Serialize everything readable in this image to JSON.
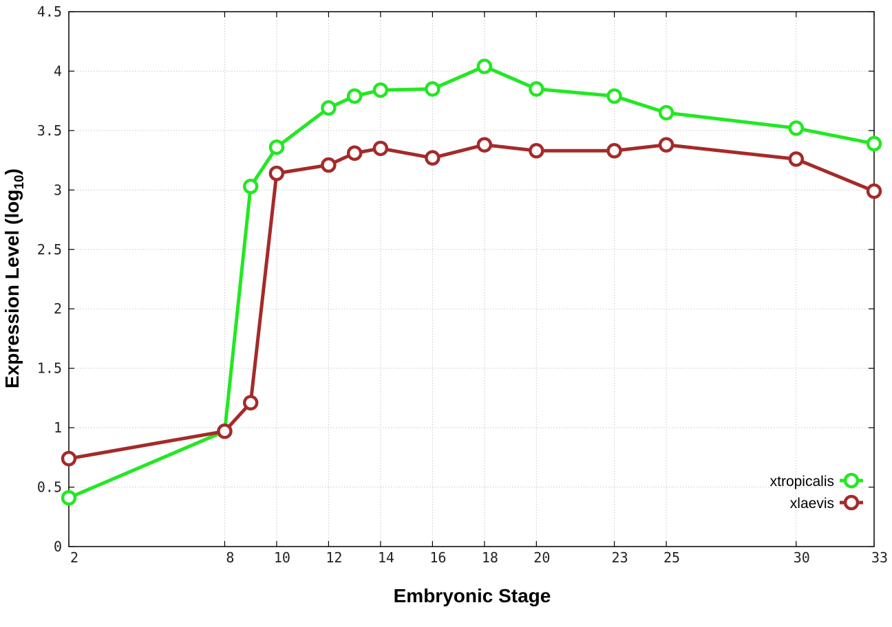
{
  "chart_data": {
    "type": "line",
    "xlabel": "Embryonic Stage",
    "ylabel_main": "Expression Level (log",
    "ylabel_sub": "10",
    "ylabel_close": ")",
    "xlim": [
      2,
      33
    ],
    "ylim": [
      0,
      4.5
    ],
    "x_ticks": [
      2,
      8,
      10,
      12,
      14,
      16,
      18,
      20,
      23,
      25,
      30,
      33
    ],
    "x_tick_labels": [
      "2",
      "8",
      "10",
      "12",
      "14",
      "16",
      "18",
      "20",
      "23",
      "25",
      "30",
      "33"
    ],
    "y_ticks": [
      0,
      0.5,
      1,
      1.5,
      2,
      2.5,
      3,
      3.5,
      4,
      4.5
    ],
    "y_tick_labels": [
      "0",
      "0.5",
      "1",
      "1.5",
      "2",
      "2.5",
      "3",
      "3.5",
      "4",
      "4.5"
    ],
    "grid": true,
    "legend_position": "bottom-right",
    "series": [
      {
        "name": "xtropicalis",
        "color": "#22e822",
        "points": [
          [
            2,
            0.41
          ],
          [
            8,
            0.97
          ],
          [
            9,
            3.03
          ],
          [
            10,
            3.36
          ],
          [
            12,
            3.69
          ],
          [
            13,
            3.79
          ],
          [
            14,
            3.84
          ],
          [
            16,
            3.85
          ],
          [
            18,
            4.04
          ],
          [
            20,
            3.85
          ],
          [
            23,
            3.79
          ],
          [
            25,
            3.65
          ],
          [
            30,
            3.52
          ],
          [
            33,
            3.39
          ]
        ]
      },
      {
        "name": "xlaevis",
        "color": "#a52a2a",
        "points": [
          [
            2,
            0.74
          ],
          [
            8,
            0.97
          ],
          [
            9,
            1.21
          ],
          [
            10,
            3.14
          ],
          [
            12,
            3.21
          ],
          [
            13,
            3.31
          ],
          [
            14,
            3.35
          ],
          [
            16,
            3.27
          ],
          [
            18,
            3.38
          ],
          [
            20,
            3.33
          ],
          [
            23,
            3.33
          ],
          [
            25,
            3.38
          ],
          [
            30,
            3.26
          ],
          [
            33,
            2.99
          ]
        ]
      }
    ]
  }
}
